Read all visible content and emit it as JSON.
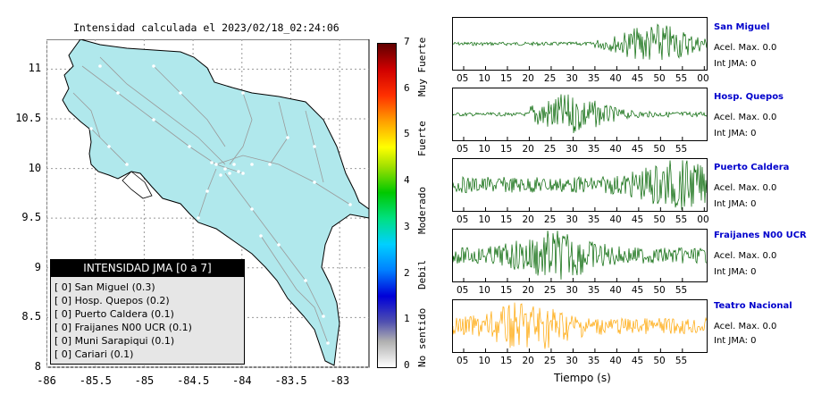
{
  "map": {
    "title": "Intensidad calculada el 2023/02/18_02:24:06",
    "land_color": "#b0e8ec",
    "road_color": "#9a9a9a"
  },
  "chart_data": [
    {
      "type": "map",
      "title": "Intensidad calculada el 2023/02/18_02:24:06",
      "x_ticks": [
        "-86",
        "-85.5",
        "-85",
        "-84.5",
        "-84",
        "-83.5",
        "-83"
      ],
      "y_ticks": [
        "11",
        "10.5",
        "10",
        "9.5",
        "9",
        "8.5",
        "8"
      ],
      "xlim": [
        -86,
        -82.7
      ],
      "ylim": [
        8,
        11.3
      ],
      "grid": true
    },
    {
      "type": "colorbar",
      "range": [
        0,
        7
      ],
      "ticks": [
        "0",
        "1",
        "2",
        "3",
        "4",
        "5",
        "6",
        "7"
      ],
      "categories": [
        "No sentido",
        "Debil",
        "Moderado",
        "Fuerte",
        "Muy Fuerte"
      ]
    },
    {
      "type": "table",
      "title": "INTENSIDAD JMA [0 a 7]",
      "rows": [
        {
          "label": "[ 0]",
          "station": "San Miguel",
          "value": 0.3
        },
        {
          "label": "[ 0]",
          "station": "Hosp. Quepos",
          "value": 0.2
        },
        {
          "label": "[ 0]",
          "station": "Puerto Caldera",
          "value": 0.1
        },
        {
          "label": "[ 0]",
          "station": "Fraijanes N00 UCR",
          "value": 0.1
        },
        {
          "label": "[ 0]",
          "station": "Muni Sarapiqui",
          "value": 0.1
        },
        {
          "label": "[ 0]",
          "station": "Cariari",
          "value": 0.1
        }
      ]
    },
    {
      "type": "line",
      "xlabel": "Tiempo (s)",
      "series": [
        {
          "name": "San Miguel",
          "acel_max": "0.0",
          "int_jma": "0",
          "color": "#006400",
          "burst_start": 0.55,
          "burst_peak": 0.8,
          "x_ticks": [
            "05",
            "10",
            "15",
            "20",
            "25",
            "30",
            "35",
            "40",
            "45",
            "50",
            "55",
            "00"
          ]
        },
        {
          "name": "Hosp. Quepos",
          "acel_max": "0.0",
          "int_jma": "0",
          "color": "#006400",
          "burst_start": 0.3,
          "burst_peak": 0.45,
          "x_ticks": [
            "05",
            "10",
            "15",
            "20",
            "25",
            "30",
            "35",
            "40",
            "45",
            "50",
            "55"
          ]
        },
        {
          "name": "Puerto Caldera",
          "acel_max": "0.0",
          "int_jma": "0",
          "color": "#006400",
          "burst_start": 0.0,
          "burst_peak": 0.88,
          "x_ticks": [
            "05",
            "10",
            "15",
            "20",
            "25",
            "30",
            "35",
            "40",
            "45",
            "50",
            "55",
            "00"
          ]
        },
        {
          "name": "Fraijanes N00 UCR",
          "acel_max": "0.0",
          "int_jma": "0",
          "color": "#006400",
          "burst_start": 0.0,
          "burst_peak": 0.4,
          "x_ticks": [
            "05",
            "10",
            "15",
            "20",
            "25",
            "30",
            "35",
            "40",
            "45",
            "50",
            "55"
          ]
        },
        {
          "name": "Teatro Nacional",
          "acel_max": "0.0",
          "int_jma": "0",
          "color": "#ffa500",
          "burst_start": 0.0,
          "burst_peak": 0.3,
          "x_ticks": [
            "05",
            "10",
            "15",
            "20",
            "25",
            "30",
            "35",
            "40",
            "45",
            "50",
            "55"
          ]
        }
      ]
    }
  ],
  "legend": {
    "title": "INTENSIDAD JMA [0 a 7]",
    "items": [
      "[ 0] San Miguel (0.3)",
      "[ 0] Hosp. Quepos (0.2)",
      "[ 0] Puerto Caldera (0.1)",
      "[ 0] Fraijanes N00 UCR (0.1)",
      "[ 0] Muni Sarapiqui (0.1)",
      "[ 0] Cariari (0.1)"
    ]
  },
  "colorbar": {
    "ticks": [
      "0",
      "1",
      "2",
      "3",
      "4",
      "5",
      "6",
      "7"
    ],
    "categories": [
      "No sentido",
      "Debil",
      "Moderado",
      "Fuerte",
      "Muy Fuerte"
    ]
  },
  "stations": [
    {
      "name": "San Miguel",
      "acel": "Acel. Max. 0.0",
      "int": "Int JMA: 0"
    },
    {
      "name": "Hosp. Quepos",
      "acel": "Acel. Max. 0.0",
      "int": "Int JMA: 0"
    },
    {
      "name": "Puerto Caldera",
      "acel": "Acel. Max. 0.0",
      "int": "Int JMA: 0"
    },
    {
      "name": "Fraijanes N00 UCR",
      "acel": "Acel. Max. 0.0",
      "int": "Int JMA: 0"
    },
    {
      "name": "Teatro Nacional",
      "acel": "Acel. Max. 0.0",
      "int": "Int JMA: 0"
    }
  ],
  "waveforms": {
    "xlabel": "Tiempo (s)"
  }
}
